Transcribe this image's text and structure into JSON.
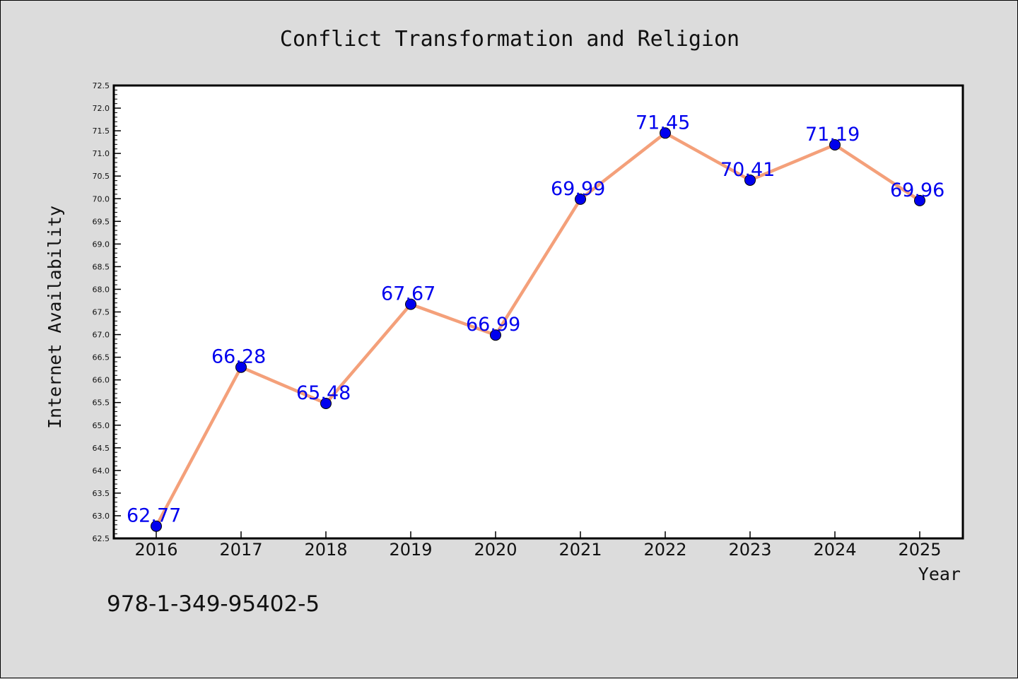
{
  "chart_data": {
    "type": "line",
    "title": "Conflict Transformation and Religion",
    "xlabel": "Year",
    "ylabel": "Internet Availability",
    "categories": [
      "2016",
      "2017",
      "2018",
      "2019",
      "2020",
      "2021",
      "2022",
      "2023",
      "2024",
      "2025"
    ],
    "series": [
      {
        "values": [
          62.77,
          66.28,
          65.48,
          67.67,
          66.99,
          69.99,
          71.45,
          70.41,
          71.19,
          69.96
        ],
        "line_color": "#f4a07a",
        "marker_color": "#0000ee"
      }
    ],
    "data_labels": [
      "62.77",
      "66.28",
      "65.48",
      "67.67",
      "66.99",
      "69.99",
      "71.45",
      "70.41",
      "71.19",
      "69.96"
    ],
    "ylim": [
      62.5,
      72.5
    ],
    "yticks": [
      "62.5",
      "63.0",
      "63.5",
      "64.0",
      "64.5",
      "65.0",
      "65.5",
      "66.0",
      "66.5",
      "67.0",
      "67.5",
      "68.0",
      "68.5",
      "69.0",
      "69.5",
      "70.0",
      "70.5",
      "71.0",
      "71.5",
      "72.0",
      "72.5"
    ],
    "grid": false,
    "legend": "none"
  },
  "footer": {
    "text": "978-1-349-95402-5"
  }
}
